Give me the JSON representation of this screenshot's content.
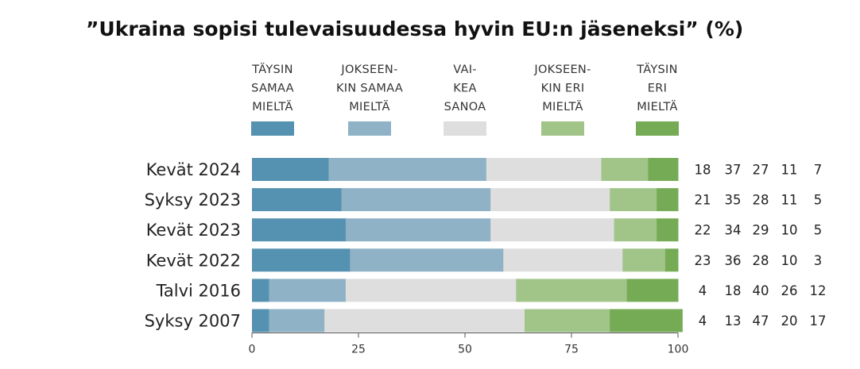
{
  "chart_data": {
    "type": "bar",
    "orientation": "horizontal",
    "stacked": true,
    "title": "”Ukraina sopisi tulevaisuudessa hyvin EU:n jäseneksi” (%)",
    "xlabel": "",
    "ylabel": "",
    "xlim": [
      0,
      100
    ],
    "xticks": [
      0,
      25,
      50,
      75,
      100
    ],
    "categories": [
      "Kevät 2024",
      "Syksy 2023",
      "Kevät 2023",
      "Kevät 2022",
      "Talvi 2016",
      "Syksy 2007"
    ],
    "series": [
      {
        "name": "TÄYSIN SAMAA MIELTÄ",
        "legend_lines": [
          "TÄYSIN",
          "SAMAA",
          "MIELTÄ"
        ],
        "color": "#5591b0",
        "values": [
          18,
          21,
          22,
          23,
          4,
          4
        ]
      },
      {
        "name": "JOKSEENKIN SAMAA MIELTÄ",
        "legend_lines": [
          "JOKSEEN-",
          "KIN SAMAA",
          "MIELTÄ"
        ],
        "color": "#8fb2c6",
        "values": [
          37,
          35,
          34,
          36,
          18,
          13
        ]
      },
      {
        "name": "VAIKEA SANOA",
        "legend_lines": [
          "VAI-",
          "KEA",
          "SANOA"
        ],
        "color": "#dedede",
        "values": [
          27,
          28,
          29,
          28,
          40,
          47
        ]
      },
      {
        "name": "JOKSEENKIN ERI MIELTÄ",
        "legend_lines": [
          "JOKSEEN-",
          "KIN ERI",
          "MIELTÄ"
        ],
        "color": "#a1c488",
        "values": [
          11,
          11,
          10,
          10,
          26,
          20
        ]
      },
      {
        "name": "TÄYSIN ERI MIELTÄ",
        "legend_lines": [
          "TÄYSIN",
          "ERI",
          "MIELTÄ"
        ],
        "color": "#76ab55",
        "values": [
          7,
          5,
          5,
          3,
          12,
          17
        ]
      }
    ],
    "value_columns_shown": true,
    "legend_position": "top"
  }
}
